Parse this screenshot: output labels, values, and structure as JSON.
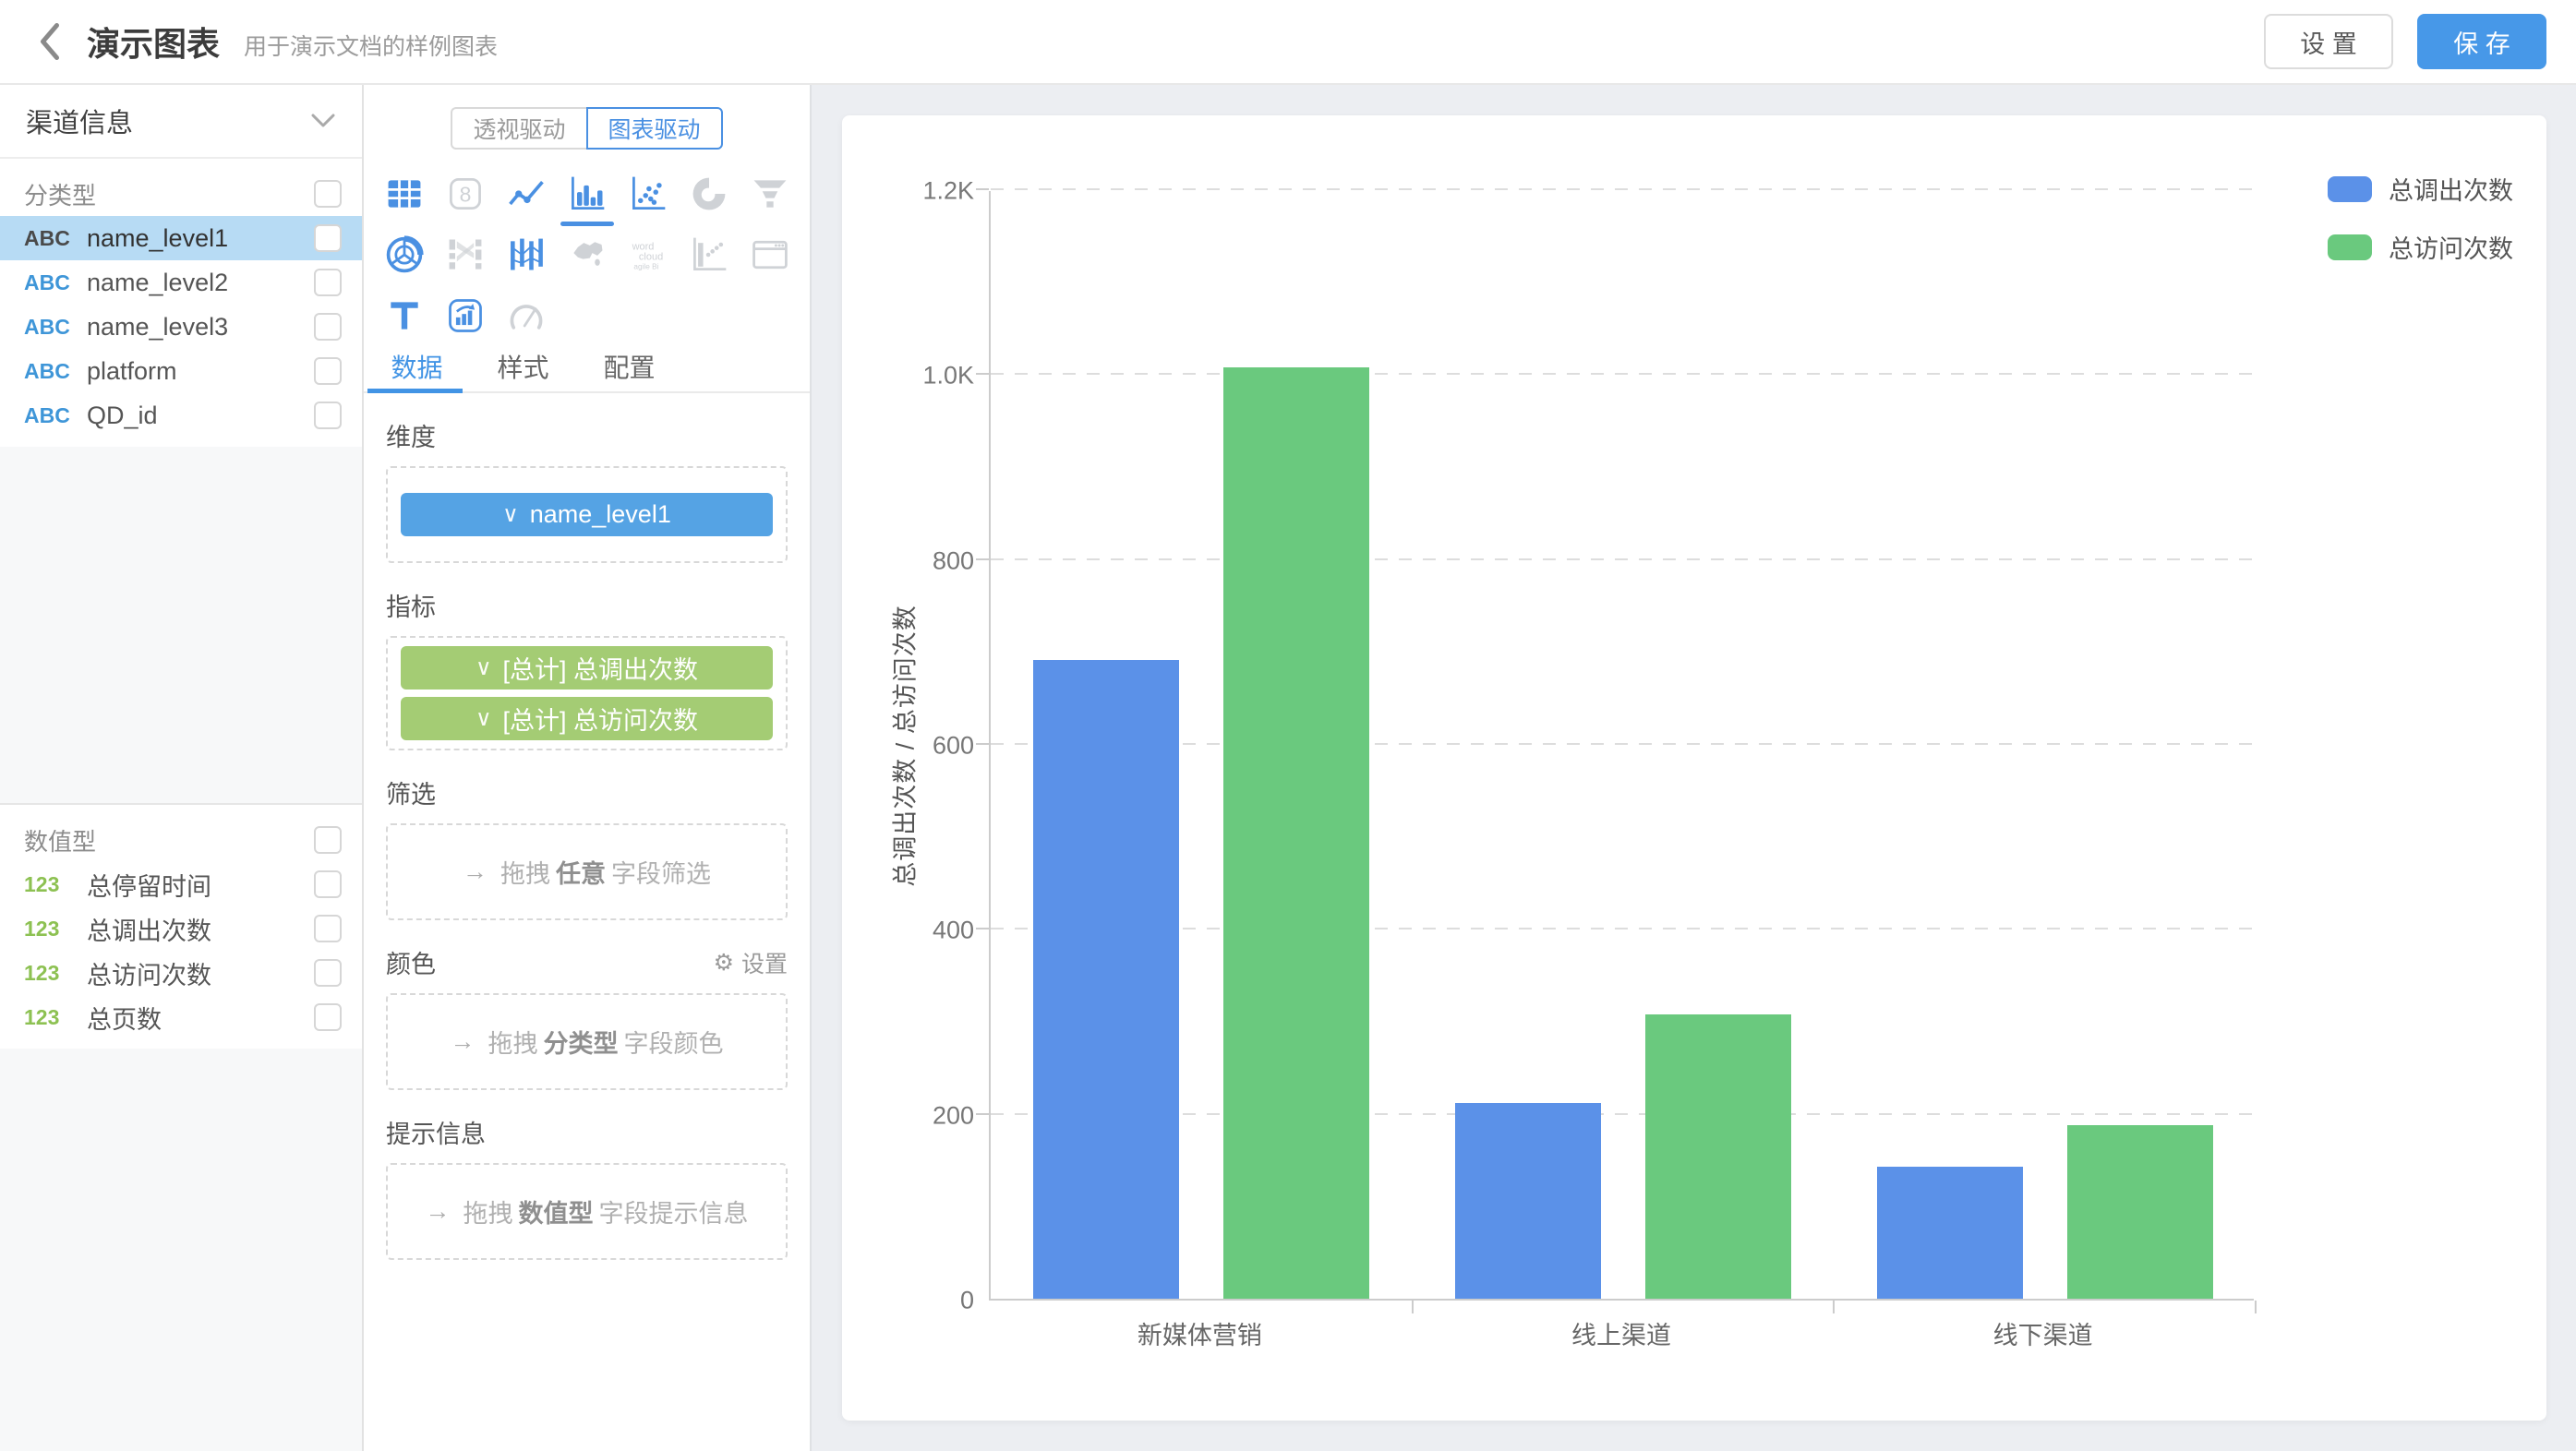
{
  "header": {
    "title": "演示图表",
    "subtitle": "用于演示文档的样例图表",
    "settings_label": "设 置",
    "save_label": "保 存"
  },
  "glyphs": {
    "chevron_down": "∨",
    "arrow_right": "→",
    "gear": "⚙"
  },
  "sidebar": {
    "dataset_name": "渠道信息",
    "categorical": {
      "label": "分类型",
      "fields": [
        {
          "type": "ABC",
          "name": "name_level1",
          "selected": true
        },
        {
          "type": "ABC",
          "name": "name_level2",
          "selected": false
        },
        {
          "type": "ABC",
          "name": "name_level3",
          "selected": false
        },
        {
          "type": "ABC",
          "name": "platform",
          "selected": false
        },
        {
          "type": "ABC",
          "name": "QD_id",
          "selected": false
        }
      ]
    },
    "numeric": {
      "label": "数值型",
      "fields": [
        {
          "type": "123",
          "name": "总停留时间",
          "selected": false
        },
        {
          "type": "123",
          "name": "总调出次数",
          "selected": false
        },
        {
          "type": "123",
          "name": "总访问次数",
          "selected": false
        },
        {
          "type": "123",
          "name": "总页数",
          "selected": false
        }
      ]
    }
  },
  "panel": {
    "mode_tabs": [
      {
        "label": "透视驱动",
        "active": false
      },
      {
        "label": "图表驱动",
        "active": true
      }
    ],
    "chart_icons": [
      {
        "name": "table",
        "active": true,
        "selected": false
      },
      {
        "name": "scorecard",
        "active": false,
        "selected": false
      },
      {
        "name": "line",
        "active": true,
        "selected": false
      },
      {
        "name": "bar",
        "active": true,
        "selected": true
      },
      {
        "name": "scatter",
        "active": true,
        "selected": false
      },
      {
        "name": "pie",
        "active": false,
        "selected": false
      },
      {
        "name": "funnel",
        "active": false,
        "selected": false
      },
      {
        "name": "radar",
        "active": true,
        "selected": false
      },
      {
        "name": "sankey",
        "active": false,
        "selected": false
      },
      {
        "name": "parallel",
        "active": true,
        "selected": false
      },
      {
        "name": "map",
        "active": false,
        "selected": false
      },
      {
        "name": "wordcloud",
        "active": false,
        "selected": false
      },
      {
        "name": "waterfall",
        "active": false,
        "selected": false
      },
      {
        "name": "iframe",
        "active": false,
        "selected": false
      },
      {
        "name": "text",
        "active": true,
        "selected": false
      },
      {
        "name": "richtext",
        "active": true,
        "selected": false
      },
      {
        "name": "gauge",
        "active": false,
        "selected": false
      }
    ],
    "tabs": [
      {
        "label": "数据",
        "active": true
      },
      {
        "label": "样式",
        "active": false
      },
      {
        "label": "配置",
        "active": false
      }
    ],
    "sections": {
      "dimension": {
        "label": "维度",
        "pills": [
          {
            "label": "name_level1",
            "color": "blue"
          }
        ]
      },
      "metric": {
        "label": "指标",
        "pills": [
          {
            "label": "[总计] 总调出次数",
            "color": "green"
          },
          {
            "label": "[总计] 总访问次数",
            "color": "green"
          }
        ]
      },
      "filter": {
        "label": "筛选",
        "hint_prefix": "拖拽",
        "hint_bold": "任意",
        "hint_suffix": "字段筛选"
      },
      "color": {
        "label": "颜色",
        "action": "设置",
        "hint_prefix": "拖拽",
        "hint_bold": "分类型",
        "hint_suffix": "字段颜色"
      },
      "tooltip": {
        "label": "提示信息",
        "hint_prefix": "拖拽",
        "hint_bold": "数值型",
        "hint_suffix": "字段提示信息"
      }
    }
  },
  "chart_data": {
    "type": "bar",
    "categories": [
      "新媒体营销",
      "线上渠道",
      "线下渠道"
    ],
    "series": [
      {
        "name": "总调出次数",
        "color": "#5b91e8",
        "values": [
          691,
          212,
          143
        ]
      },
      {
        "name": "总访问次数",
        "color": "#6ac97e",
        "values": [
          1007,
          308,
          188
        ]
      }
    ],
    "title": "",
    "xlabel": "",
    "ylabel": "总调出次数 / 总访问次数",
    "ylim": [
      0,
      1200
    ],
    "yticks": [
      {
        "v": 0,
        "label": "0"
      },
      {
        "v": 200,
        "label": "200"
      },
      {
        "v": 400,
        "label": "400"
      },
      {
        "v": 600,
        "label": "600"
      },
      {
        "v": 800,
        "label": "800"
      },
      {
        "v": 1000,
        "label": "1.0K"
      },
      {
        "v": 1200,
        "label": "1.2K"
      }
    ],
    "grid": "dashed-horizontal",
    "legend_position": "top-right"
  },
  "colors": {
    "accent_blue": "#4a90e2",
    "save_button": "#4798e8",
    "bar_blue": "#5b91e8",
    "bar_green": "#6ac97e",
    "pill_blue": "#55a3e4",
    "pill_green": "#a4cc74",
    "selected_row": "#b7dbf4",
    "abc_type": "#3f96d8",
    "num_type": "#8dc152",
    "canvas_bg": "#eceef2"
  }
}
